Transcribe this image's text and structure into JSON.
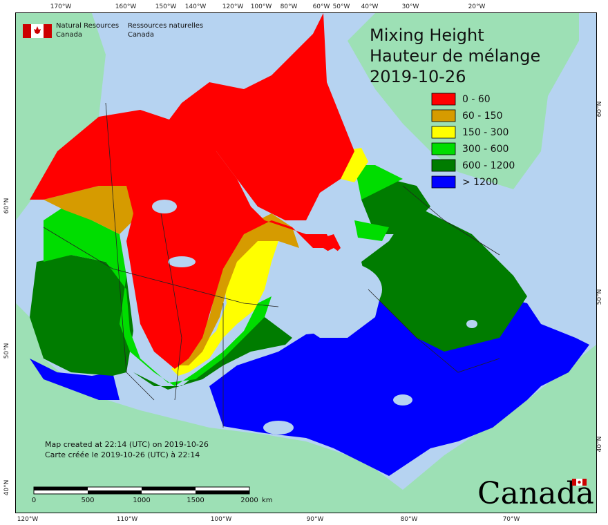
{
  "header": {
    "agency_en_line1": "Natural Resources",
    "agency_en_line2": "Canada",
    "agency_fr_line1": "Ressources naturelles",
    "agency_fr_line2": "Canada"
  },
  "title": {
    "line1": "Mixing Height",
    "line2": "Hauteur de mélange",
    "date": "2019-10-26"
  },
  "legend": {
    "items": [
      {
        "label": "0 - 60",
        "color": "#ff0000"
      },
      {
        "label": "60 - 150",
        "color": "#d69b00"
      },
      {
        "label": "150 - 300",
        "color": "#ffff00"
      },
      {
        "label": "300 - 600",
        "color": "#00dd00"
      },
      {
        "label": "600 - 1200",
        "color": "#007c00"
      },
      {
        "label": "> 1200",
        "color": "#0000ff"
      }
    ]
  },
  "top_ticks": [
    "170°W",
    "160°W",
    "150°W",
    "140°W",
    "120°W",
    "100°W",
    "80°W",
    "60°W",
    "50°W",
    "40°W",
    "30°W",
    "20°W"
  ],
  "bottom_ticks": [
    "120°W",
    "110°W",
    "100°W",
    "90°W",
    "80°W",
    "70°W"
  ],
  "left_ticks": [
    "60°N",
    "50°N",
    "40°N"
  ],
  "right_ticks": [
    "60°N",
    "50°N",
    "40°N"
  ],
  "created": {
    "en": "Map created at 22:14 (UTC) on 2019-10-26",
    "fr": "Carte créée le 2019-10-26 (UTC) à 22:14"
  },
  "scale": {
    "labels": [
      "0",
      "500",
      "1000",
      "1500",
      "2000"
    ],
    "unit": "km"
  },
  "wordmark": "Canada",
  "colors": {
    "water": "#b6d3f1",
    "land_other": "#9de0b5",
    "border": "#000000"
  }
}
